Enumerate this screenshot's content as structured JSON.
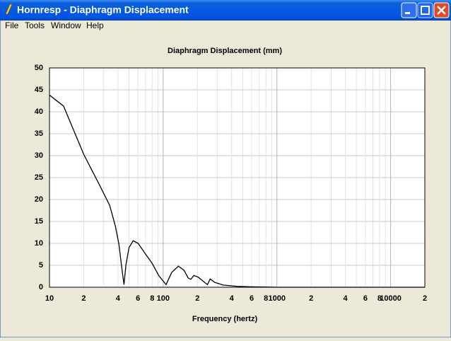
{
  "window": {
    "title": "Hornresp - Diaphragm Displacement"
  },
  "menu": [
    "File",
    "Tools",
    "Window",
    "Help"
  ],
  "chart_data": {
    "type": "line",
    "title": "Diaphragm Displacement (mm)",
    "x_label": "Frequency (hertz)",
    "log_x": true,
    "grid": true,
    "color": "#000000",
    "xlim": [
      10,
      20000
    ],
    "ylim": [
      0,
      50
    ],
    "xticks": [
      {
        "value": 10,
        "label": "10"
      },
      {
        "value": 20,
        "label": "2"
      },
      {
        "value": 40,
        "label": "4"
      },
      {
        "value": 60,
        "label": "6"
      },
      {
        "value": 80,
        "label": "8"
      },
      {
        "value": 100,
        "label": "100"
      },
      {
        "value": 200,
        "label": "2"
      },
      {
        "value": 400,
        "label": "4"
      },
      {
        "value": 600,
        "label": "6"
      },
      {
        "value": 800,
        "label": "8"
      },
      {
        "value": 1000,
        "label": "1000"
      },
      {
        "value": 2000,
        "label": "2"
      },
      {
        "value": 4000,
        "label": "4"
      },
      {
        "value": 6000,
        "label": "6"
      },
      {
        "value": 8000,
        "label": "8"
      },
      {
        "value": 10000,
        "label": "10000"
      },
      {
        "value": 20000,
        "label": "2"
      }
    ],
    "xgrid_minor": [
      30,
      50,
      70,
      90,
      300,
      500,
      700,
      900,
      3000,
      5000,
      7000,
      9000
    ],
    "yticks": [
      0,
      5,
      10,
      15,
      20,
      25,
      30,
      35,
      40,
      45,
      50
    ],
    "x": [
      10,
      13.3,
      20,
      27.3,
      33.8,
      38,
      40.8,
      43.2,
      45.2,
      47,
      50,
      54.4,
      60.2,
      69.3,
      79.7,
      91.7,
      106,
      119,
      136,
      152,
      166,
      175,
      186,
      203,
      234,
      245,
      259,
      284,
      336,
      447,
      593,
      1000,
      5000,
      20000
    ],
    "values": [
      43.8,
      41.3,
      30.3,
      23.5,
      18.7,
      13.9,
      9.8,
      4.5,
      0.6,
      5,
      9,
      10.6,
      10,
      7.7,
      5.5,
      2.6,
      0.6,
      3.4,
      4.8,
      3.9,
      2.1,
      1.8,
      2.7,
      2.3,
      1,
      0.6,
      1.9,
      1.1,
      0.5,
      0.2,
      0.1,
      0,
      0,
      0
    ]
  }
}
